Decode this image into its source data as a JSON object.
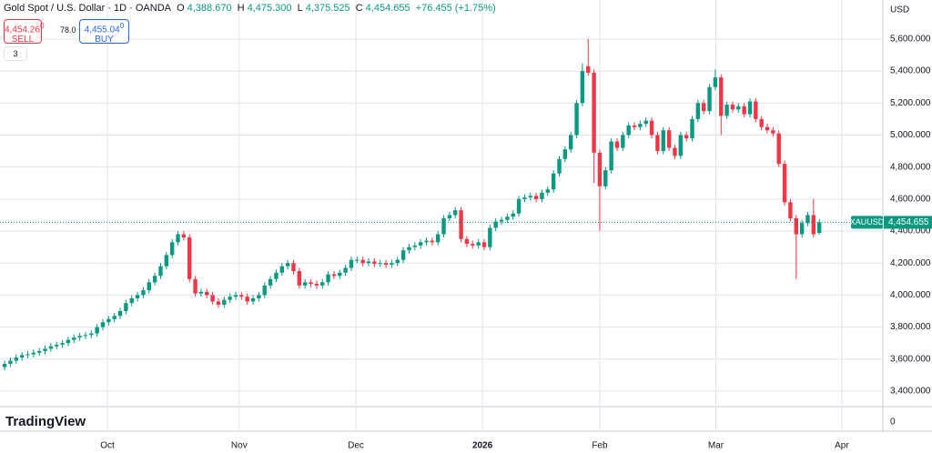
{
  "header": {
    "title": "Gold Spot / U.S. Dollar · 1D · OANDA",
    "o_key": "O",
    "open": "4,388.670",
    "h_key": "H",
    "high": "4,475.300",
    "l_key": "L",
    "low": "4,375.525",
    "c_key": "C",
    "close": "4,454.655",
    "change": "+76.455 (+1.75%)",
    "sell_price": "4,454.26",
    "sell_sup": "0",
    "sell_label": "SELL",
    "spread": "78.0",
    "buy_price": "4,455.04",
    "buy_sup": "0",
    "buy_label": "BUY",
    "indicators": "3",
    "currency": "USD",
    "logo": "TradingView"
  },
  "chart_data": {
    "type": "candlestick",
    "symbol": "XAUUSD",
    "last_label": "4,454.655",
    "up_color": "#089981",
    "down_color": "#f23645",
    "xlim": [
      -0.8,
      152
    ],
    "xticks": [
      {
        "value": 17.8,
        "label": "Oct"
      },
      {
        "value": 40.6,
        "label": "Nov"
      },
      {
        "value": 60.8,
        "label": "Dec"
      },
      {
        "value": 82.7,
        "label": "2026"
      },
      {
        "value": 103,
        "label": "Feb"
      },
      {
        "value": 123.1,
        "label": "Mar"
      },
      {
        "value": 144.9,
        "label": "Apr"
      }
    ],
    "ylim": [
      3303,
      5844
    ],
    "yticks": [
      {
        "value": 3400,
        "label": "3,400.000"
      },
      {
        "value": 3600,
        "label": "3,600.000"
      },
      {
        "value": 3800,
        "label": "3,800.000"
      },
      {
        "value": 4000,
        "label": "4,000.000"
      },
      {
        "value": 4200,
        "label": "4,200.000"
      },
      {
        "value": 4400,
        "label": "4,400.000"
      },
      {
        "value": 4600,
        "label": "4,600.000"
      },
      {
        "value": 4800,
        "label": "4,800.000"
      },
      {
        "value": 5000,
        "label": "5,000.000"
      },
      {
        "value": 5200,
        "label": "5,200.000"
      },
      {
        "value": 5400,
        "label": "5,400.000"
      },
      {
        "value": 5600,
        "label": "5,600.000"
      }
    ],
    "volume_ticks": [
      0
    ],
    "grid": true,
    "open": [
      3550,
      3570,
      3590,
      3610,
      3625,
      3630,
      3640,
      3650,
      3665,
      3680,
      3690,
      3700,
      3720,
      3735,
      3745,
      3750,
      3760,
      3800,
      3830,
      3850,
      3870,
      3900,
      3950,
      3980,
      4000,
      4030,
      4080,
      4120,
      4180,
      4250,
      4330,
      4380,
      4360,
      4100,
      4010,
      4020,
      4000,
      3960,
      3940,
      3970,
      3990,
      4000,
      3990,
      3960,
      3980,
      4000,
      4060,
      4100,
      4140,
      4180,
      4200,
      4150,
      4060,
      4080,
      4070,
      4060,
      4080,
      4130,
      4120,
      4140,
      4170,
      4220,
      4220,
      4200,
      4210,
      4195,
      4200,
      4190,
      4200,
      4220,
      4280,
      4300,
      4310,
      4330,
      4340,
      4330,
      4380,
      4480,
      4500,
      4530,
      4350,
      4320,
      4310,
      4330,
      4300,
      4420,
      4460,
      4470,
      4490,
      4510,
      4600,
      4610,
      4620,
      4600,
      4640,
      4660,
      4760,
      4850,
      4910,
      5000,
      5200,
      5430,
      5390,
      4890,
      4680,
      4780,
      4960,
      4920,
      5000,
      5060,
      5050,
      5070,
      5090,
      5000,
      4900,
      5030,
      4920,
      4870,
      5000,
      4980,
      5100,
      5200,
      5150,
      5300,
      5360,
      5120,
      5190,
      5160,
      5180,
      5130,
      5210,
      5100,
      5050,
      5030,
      5010,
      4820,
      4580,
      4480,
      4380,
      4450,
      4500,
      4388.67
    ],
    "high": [
      3590,
      3610,
      3630,
      3645,
      3650,
      3660,
      3670,
      3685,
      3700,
      3710,
      3720,
      3740,
      3755,
      3765,
      3770,
      3780,
      3820,
      3850,
      3870,
      3890,
      3920,
      3970,
      4000,
      4020,
      4050,
      4100,
      4140,
      4200,
      4270,
      4350,
      4400,
      4400,
      4380,
      4120,
      4040,
      4040,
      4020,
      3980,
      3990,
      4010,
      4020,
      4020,
      4010,
      4000,
      4020,
      4080,
      4120,
      4160,
      4200,
      4220,
      4220,
      4170,
      4100,
      4100,
      4090,
      4100,
      4150,
      4150,
      4160,
      4190,
      4240,
      4240,
      4240,
      4230,
      4230,
      4220,
      4220,
      4220,
      4240,
      4300,
      4320,
      4330,
      4350,
      4360,
      4360,
      4400,
      4500,
      4520,
      4550,
      4550,
      4370,
      4340,
      4350,
      4350,
      4440,
      4480,
      4490,
      4510,
      4530,
      4620,
      4630,
      4640,
      4640,
      4660,
      4680,
      4780,
      4870,
      4930,
      5020,
      5220,
      5450,
      5600,
      5410,
      4910,
      4800,
      4980,
      4980,
      5020,
      5080,
      5080,
      5090,
      5110,
      5110,
      5020,
      5050,
      5050,
      4940,
      5020,
      5020,
      5120,
      5220,
      5220,
      5320,
      5410,
      5380,
      5210,
      5210,
      5200,
      5200,
      5230,
      5230,
      5120,
      5070,
      5050,
      5030,
      4840,
      4600,
      4500,
      4470,
      4520,
      4600,
      4475.3
    ],
    "low": [
      3530,
      3550,
      3570,
      3590,
      3605,
      3610,
      3620,
      3630,
      3645,
      3660,
      3670,
      3680,
      3700,
      3715,
      3725,
      3730,
      3740,
      3780,
      3810,
      3830,
      3850,
      3880,
      3930,
      3960,
      3980,
      4010,
      4060,
      4100,
      4160,
      4230,
      4310,
      4340,
      4080,
      3990,
      3990,
      3980,
      3940,
      3920,
      3920,
      3950,
      3970,
      3970,
      3940,
      3940,
      3960,
      3980,
      4040,
      4080,
      4120,
      4160,
      4130,
      4040,
      4040,
      4050,
      4040,
      4040,
      4060,
      4100,
      4100,
      4120,
      4150,
      4200,
      4180,
      4180,
      4175,
      4175,
      4170,
      4170,
      4180,
      4200,
      4260,
      4280,
      4290,
      4310,
      4310,
      4310,
      4360,
      4460,
      4480,
      4330,
      4300,
      4290,
      4290,
      4280,
      4280,
      4400,
      4440,
      4450,
      4470,
      4490,
      4580,
      4590,
      4580,
      4580,
      4620,
      4640,
      4740,
      4830,
      4890,
      4980,
      5180,
      5370,
      4700,
      4400,
      4660,
      4760,
      4900,
      4900,
      4980,
      5030,
      5030,
      5050,
      4980,
      4880,
      4880,
      4900,
      4850,
      4850,
      4960,
      4960,
      5080,
      5130,
      5130,
      5280,
      5000,
      5100,
      5140,
      5140,
      5110,
      5110,
      5080,
      5030,
      5010,
      4990,
      4800,
      4560,
      4460,
      4100,
      4360,
      4430,
      4360,
      4375.525
    ],
    "close": [
      3570,
      3590,
      3610,
      3625,
      3630,
      3640,
      3650,
      3665,
      3680,
      3690,
      3700,
      3720,
      3735,
      3745,
      3750,
      3760,
      3800,
      3830,
      3850,
      3870,
      3900,
      3950,
      3980,
      4000,
      4030,
      4080,
      4120,
      4180,
      4250,
      4330,
      4380,
      4360,
      4100,
      4010,
      4020,
      4000,
      3960,
      3940,
      3970,
      3990,
      4000,
      3990,
      3960,
      3980,
      4000,
      4060,
      4100,
      4140,
      4180,
      4200,
      4150,
      4060,
      4080,
      4070,
      4060,
      4080,
      4130,
      4120,
      4140,
      4170,
      4220,
      4220,
      4200,
      4210,
      4195,
      4200,
      4190,
      4200,
      4220,
      4280,
      4300,
      4310,
      4330,
      4340,
      4330,
      4380,
      4480,
      4500,
      4530,
      4350,
      4320,
      4310,
      4330,
      4300,
      4420,
      4460,
      4470,
      4490,
      4510,
      4600,
      4610,
      4620,
      4600,
      4640,
      4660,
      4760,
      4850,
      4910,
      5000,
      5200,
      5400,
      5390,
      4890,
      4680,
      4780,
      4960,
      4920,
      5000,
      5060,
      5050,
      5070,
      5090,
      5000,
      4900,
      5030,
      4920,
      4870,
      5000,
      4980,
      5100,
      5200,
      5150,
      5300,
      5360,
      5120,
      5190,
      5160,
      5180,
      5130,
      5210,
      5100,
      5050,
      5030,
      5010,
      4820,
      4580,
      4480,
      4380,
      4450,
      4500,
      4380,
      4454.655
    ]
  }
}
